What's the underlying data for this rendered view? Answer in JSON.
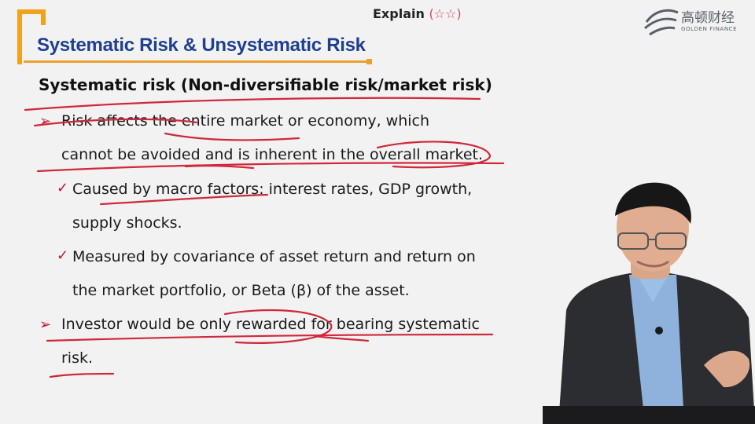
{
  "header": {
    "explain_label": "Explain",
    "explain_stars": "(☆☆)",
    "logo_cn": "高顿财经",
    "logo_en": "GOLDEN FINANCE"
  },
  "slide": {
    "title": "Systematic Risk & Unsystematic Risk",
    "heading": "Systematic risk (Non-diversifiable risk/market risk)",
    "bullet1_line1": "Risk affects the entire market or economy, which",
    "bullet1_line2": "cannot be avoided and is inherent in the overall market.",
    "sub1_line1": "Caused by macro factors: interest rates, GDP growth,",
    "sub1_line2": "supply shocks.",
    "sub2_line1": "Measured by covariance of asset return and return on",
    "sub2_line2": "the market portfolio, or Beta (β) of the asset.",
    "bullet2_line1": "Investor would be only rewarded for bearing systematic",
    "bullet2_line2": "risk."
  },
  "colors": {
    "title_blue": "#1f3f8f",
    "accent_orange": "#f0a21a",
    "bullet_red": "#c8102e",
    "ink_red": "#d0283a"
  }
}
